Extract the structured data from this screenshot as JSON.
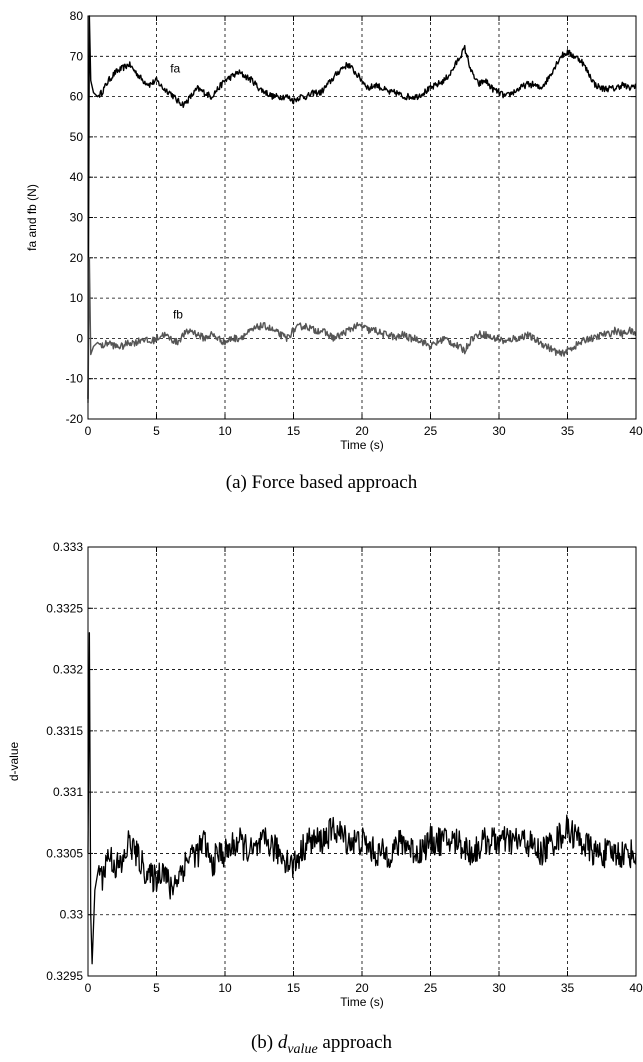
{
  "chart_data": [
    {
      "type": "line",
      "xlabel": "Time (s)",
      "ylabel": "fa and fb (N)",
      "xlim": [
        0,
        40
      ],
      "ylim": [
        -20,
        80
      ],
      "xticks": [
        "0",
        "5",
        "10",
        "15",
        "20",
        "25",
        "30",
        "35",
        "40"
      ],
      "yticks": [
        "-20",
        "-10",
        "0",
        "10",
        "20",
        "30",
        "40",
        "50",
        "60",
        "70",
        "80"
      ],
      "grid": true,
      "caption": "(a) Force based approach",
      "annotations": [
        {
          "text": "fa",
          "x": 6.0,
          "y": 66
        },
        {
          "text": "fb",
          "x": 6.2,
          "y": 5
        }
      ],
      "series": [
        {
          "key": "fa",
          "color": "#000000",
          "noise": 0.8,
          "x": [
            0,
            0.1,
            0.2,
            0.4,
            0.7,
            1.0,
            1.5,
            2.0,
            2.5,
            3.0,
            3.5,
            4.0,
            4.5,
            5.0,
            5.5,
            6.0,
            6.5,
            7.0,
            7.5,
            8.0,
            8.5,
            9.0,
            9.5,
            10.0,
            10.5,
            11.0,
            11.5,
            12.0,
            12.5,
            13.0,
            13.5,
            14.0,
            14.5,
            15.0,
            15.5,
            16.0,
            16.5,
            17.0,
            17.5,
            18.0,
            18.5,
            19.0,
            19.5,
            20.0,
            20.5,
            21.0,
            21.5,
            22.0,
            22.5,
            23.0,
            23.5,
            24.0,
            24.5,
            25.0,
            25.5,
            26.0,
            26.5,
            27.0,
            27.5,
            28.0,
            28.5,
            29.0,
            29.5,
            30.0,
            30.5,
            31.0,
            31.5,
            32.0,
            32.5,
            33.0,
            33.5,
            34.0,
            34.5,
            35.0,
            35.5,
            36.0,
            36.5,
            37.0,
            37.5,
            38.0,
            38.5,
            39.0,
            39.5,
            40.0
          ],
          "y": [
            -15,
            80,
            64,
            61,
            60,
            61,
            64,
            66,
            67,
            68,
            66,
            64,
            63,
            64,
            62,
            61,
            59,
            58,
            60,
            62,
            61,
            60,
            62,
            64,
            65,
            66,
            65,
            64,
            62,
            61,
            60,
            60,
            60,
            59,
            60,
            60,
            61,
            61,
            63,
            65,
            67,
            68,
            66,
            64,
            62,
            63,
            62,
            61,
            61,
            60,
            60,
            60,
            61,
            62,
            63,
            64,
            66,
            69,
            72,
            66,
            63,
            64,
            62,
            61,
            60,
            61,
            62,
            63,
            63,
            62,
            64,
            67,
            70,
            71,
            70,
            69,
            66,
            63,
            62,
            62,
            62,
            63,
            62,
            63
          ]
        },
        {
          "key": "fb",
          "color": "#555555",
          "noise": 0.9,
          "x": [
            0,
            0.1,
            0.2,
            0.4,
            0.7,
            1.0,
            1.5,
            2.0,
            2.5,
            3.0,
            3.5,
            4.0,
            4.5,
            5.0,
            5.5,
            6.0,
            6.5,
            7.0,
            7.5,
            8.0,
            8.5,
            9.0,
            9.5,
            10.0,
            10.5,
            11.0,
            11.5,
            12.0,
            12.5,
            13.0,
            13.5,
            14.0,
            14.5,
            15.0,
            15.5,
            16.0,
            16.5,
            17.0,
            17.5,
            18.0,
            18.5,
            19.0,
            19.5,
            20.0,
            20.5,
            21.0,
            21.5,
            22.0,
            22.5,
            23.0,
            23.5,
            24.0,
            24.5,
            25.0,
            25.5,
            26.0,
            26.5,
            27.0,
            27.5,
            28.0,
            28.5,
            29.0,
            29.5,
            30.0,
            30.5,
            31.0,
            31.5,
            32.0,
            32.5,
            33.0,
            33.5,
            34.0,
            34.5,
            35.0,
            35.5,
            36.0,
            36.5,
            37.0,
            37.5,
            38.0,
            38.5,
            39.0,
            39.5,
            40.0
          ],
          "y": [
            -16,
            20,
            -4,
            -2,
            -1,
            -2,
            -1,
            -2,
            -2,
            -1,
            -1,
            0,
            -1,
            0,
            1,
            0,
            -1,
            1,
            2,
            1,
            0,
            1,
            0,
            -1,
            0,
            0,
            1,
            2,
            3,
            3,
            2,
            1,
            0,
            2,
            3,
            3,
            2,
            2,
            1,
            0,
            1,
            2,
            3,
            3,
            2,
            2,
            1,
            1,
            0,
            1,
            0,
            0,
            -1,
            -2,
            -1,
            0,
            -1,
            -2,
            -3,
            0,
            1,
            1,
            0,
            0,
            -1,
            0,
            0,
            1,
            0,
            -1,
            -2,
            -3,
            -4,
            -3,
            -2,
            -1,
            0,
            0,
            1,
            1,
            2,
            1,
            2,
            1
          ]
        }
      ]
    },
    {
      "type": "line",
      "xlabel": "Time (s)",
      "ylabel": "d-value",
      "xlim": [
        0,
        40
      ],
      "ylim": [
        0.3295,
        0.333
      ],
      "xticks": [
        "0",
        "5",
        "10",
        "15",
        "20",
        "25",
        "30",
        "35",
        "40"
      ],
      "yticks": [
        "0.3295",
        "0.33",
        "0.3305",
        "0.331",
        "0.3315",
        "0.332",
        "0.3325",
        "0.333"
      ],
      "grid": true,
      "caption_prefix": "(b) ",
      "caption_main": "d",
      "caption_sub": "value",
      "caption_suffix": " approach",
      "series": [
        {
          "key": "d",
          "color": "#000000",
          "noise": 0.00012,
          "x": [
            0,
            0.1,
            0.2,
            0.3,
            0.5,
            0.8,
            1.0,
            1.5,
            2.0,
            2.5,
            3.0,
            3.5,
            4.0,
            4.5,
            5.0,
            5.5,
            6.0,
            6.5,
            7.0,
            7.5,
            8.0,
            8.5,
            9.0,
            9.5,
            10.0,
            11.0,
            12.0,
            13.0,
            14.0,
            15.0,
            16.0,
            17.0,
            18.0,
            19.0,
            20.0,
            21.0,
            22.0,
            23.0,
            24.0,
            25.0,
            26.0,
            27.0,
            28.0,
            29.0,
            30.0,
            31.0,
            32.0,
            33.0,
            34.0,
            35.0,
            36.0,
            37.0,
            38.0,
            39.0,
            40.0
          ],
          "y": [
            0.3305,
            0.3323,
            0.33,
            0.3296,
            0.3302,
            0.3304,
            0.3303,
            0.3305,
            0.3304,
            0.3304,
            0.3306,
            0.3305,
            0.3304,
            0.3303,
            0.3303,
            0.3304,
            0.3302,
            0.3303,
            0.3304,
            0.3305,
            0.3305,
            0.3306,
            0.3304,
            0.3305,
            0.3305,
            0.3306,
            0.3305,
            0.3306,
            0.3305,
            0.3304,
            0.3306,
            0.3306,
            0.3307,
            0.3306,
            0.3306,
            0.3305,
            0.3305,
            0.3306,
            0.3305,
            0.3306,
            0.3306,
            0.3306,
            0.3305,
            0.3306,
            0.3306,
            0.3306,
            0.3306,
            0.3305,
            0.3306,
            0.3307,
            0.3306,
            0.3305,
            0.3305,
            0.3305,
            0.3305
          ]
        }
      ]
    }
  ]
}
